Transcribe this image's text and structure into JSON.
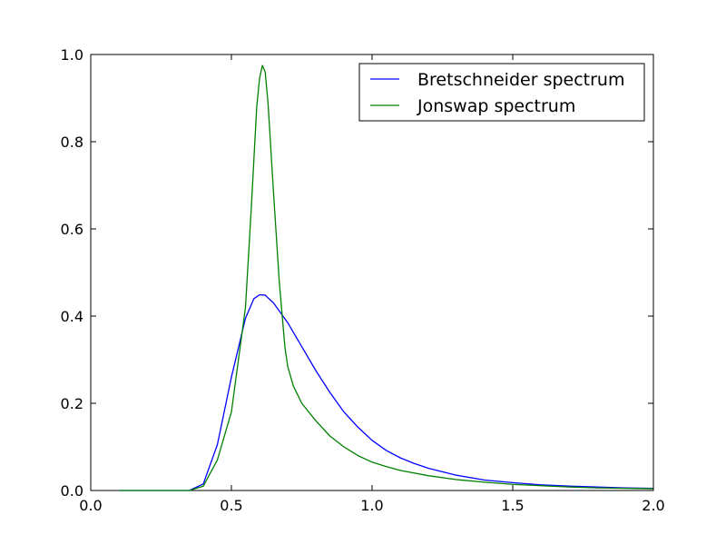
{
  "chart_data": {
    "type": "line",
    "title": "",
    "xlabel": "",
    "ylabel": "",
    "xlim": [
      0.0,
      2.0
    ],
    "ylim": [
      0.0,
      1.0
    ],
    "x_ticks": [
      "0.0",
      "0.5",
      "1.0",
      "1.5",
      "2.0"
    ],
    "y_ticks": [
      "0.0",
      "0.2",
      "0.4",
      "0.6",
      "0.8",
      "1.0"
    ],
    "grid": false,
    "legend_position": "top-right",
    "series": [
      {
        "name": "Bretschneider spectrum",
        "color": "#0000ff",
        "x": [
          0.1,
          0.35,
          0.4,
          0.45,
          0.5,
          0.55,
          0.58,
          0.6,
          0.62,
          0.65,
          0.7,
          0.75,
          0.8,
          0.85,
          0.9,
          0.95,
          1.0,
          1.05,
          1.1,
          1.15,
          1.2,
          1.3,
          1.4,
          1.5,
          1.6,
          1.7,
          1.8,
          1.9,
          2.0
        ],
        "y": [
          0.0,
          0.0,
          0.015,
          0.105,
          0.26,
          0.395,
          0.44,
          0.449,
          0.448,
          0.43,
          0.385,
          0.33,
          0.275,
          0.225,
          0.18,
          0.145,
          0.115,
          0.092,
          0.075,
          0.062,
          0.051,
          0.035,
          0.024,
          0.018,
          0.013,
          0.01,
          0.008,
          0.006,
          0.005
        ]
      },
      {
        "name": "Jonswap spectrum",
        "color": "#008000",
        "x": [
          0.1,
          0.35,
          0.4,
          0.45,
          0.5,
          0.55,
          0.57,
          0.59,
          0.6,
          0.61,
          0.62,
          0.63,
          0.65,
          0.67,
          0.69,
          0.7,
          0.72,
          0.75,
          0.8,
          0.85,
          0.9,
          0.95,
          1.0,
          1.05,
          1.1,
          1.2,
          1.3,
          1.4,
          1.5,
          1.6,
          1.7,
          1.8,
          1.9,
          2.0
        ],
        "y": [
          0.0,
          0.0,
          0.01,
          0.07,
          0.18,
          0.42,
          0.64,
          0.88,
          0.945,
          0.975,
          0.96,
          0.89,
          0.68,
          0.48,
          0.33,
          0.285,
          0.24,
          0.2,
          0.16,
          0.125,
          0.1,
          0.08,
          0.065,
          0.055,
          0.046,
          0.034,
          0.025,
          0.019,
          0.014,
          0.011,
          0.008,
          0.006,
          0.005,
          0.004
        ]
      }
    ]
  }
}
